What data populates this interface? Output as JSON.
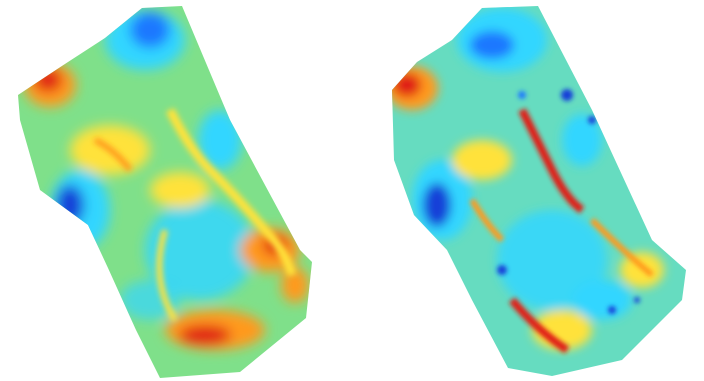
{
  "figure": {
    "panels": [
      {
        "id": "left",
        "colormap": "jet"
      },
      {
        "id": "right",
        "colormap": "jet"
      }
    ],
    "colors": {
      "background": "#ffffff",
      "base": "#7fe08a",
      "cyan": "#33d6ff",
      "blue": "#1e78ff",
      "deep_blue": "#1340d8",
      "yellow": "#ffe23a",
      "orange": "#ff9a1f",
      "red": "#e01e12"
    }
  }
}
